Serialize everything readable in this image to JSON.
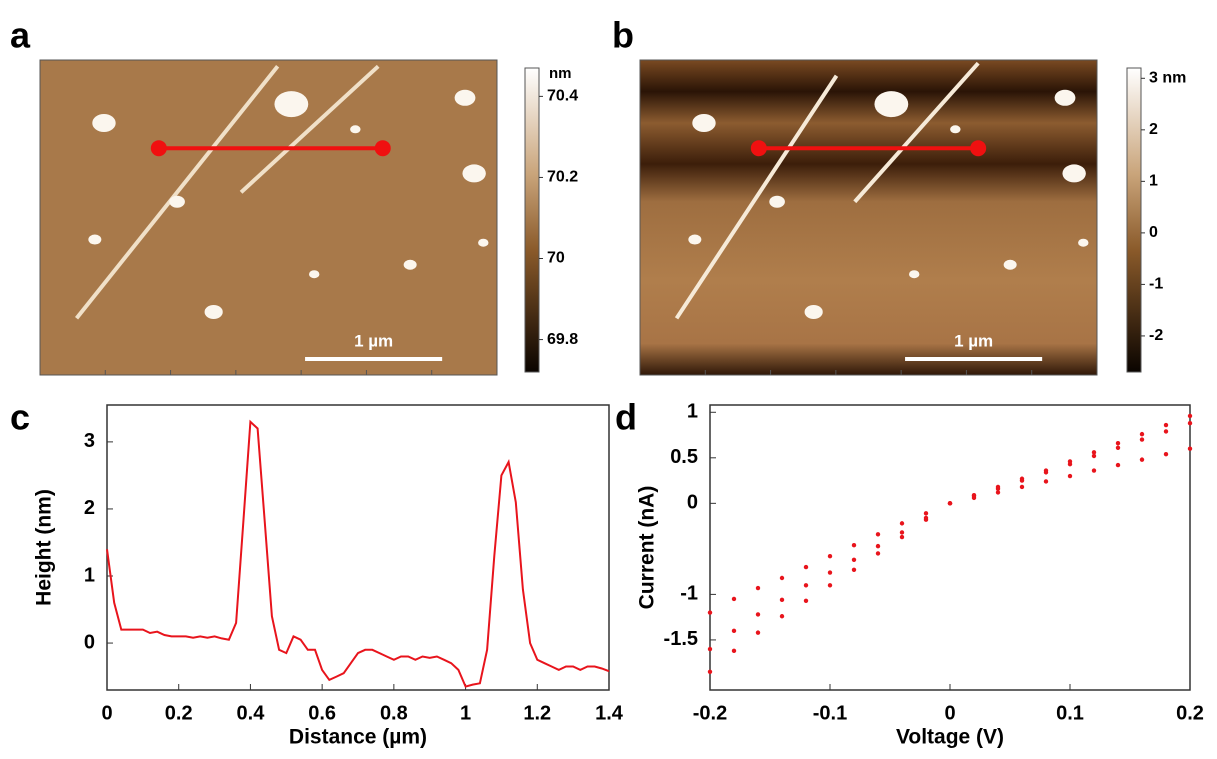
{
  "chart_data": [
    {
      "type": "image",
      "panel": "a",
      "colorbar_unit": "nm",
      "colorbar_ticks": [
        70.4,
        70.2,
        70,
        69.8
      ],
      "clim": [
        69.72,
        70.47
      ],
      "scale_bar": "1 µm"
    },
    {
      "type": "image",
      "panel": "b",
      "colorbar_ticks": [
        {
          "value": 3,
          "label": "3 nm"
        },
        2,
        1,
        0,
        -1,
        -2
      ],
      "clim": [
        -2.7,
        3.2
      ],
      "scale_bar": "1 µm"
    },
    {
      "type": "line",
      "panel": "c",
      "xlabel": "Distance (µm)",
      "ylabel": "Height (nm)",
      "x": [
        0,
        0.02,
        0.04,
        0.06,
        0.08,
        0.1,
        0.12,
        0.14,
        0.16,
        0.18,
        0.2,
        0.22,
        0.24,
        0.26,
        0.28,
        0.3,
        0.32,
        0.34,
        0.36,
        0.38,
        0.4,
        0.42,
        0.44,
        0.46,
        0.48,
        0.5,
        0.52,
        0.54,
        0.56,
        0.58,
        0.6,
        0.62,
        0.64,
        0.66,
        0.68,
        0.7,
        0.72,
        0.74,
        0.76,
        0.78,
        0.8,
        0.82,
        0.84,
        0.86,
        0.88,
        0.9,
        0.92,
        0.94,
        0.96,
        0.98,
        1.0,
        1.02,
        1.04,
        1.06,
        1.08,
        1.1,
        1.12,
        1.14,
        1.16,
        1.18,
        1.2,
        1.22,
        1.24,
        1.26,
        1.28,
        1.3,
        1.32,
        1.34,
        1.36,
        1.38,
        1.4
      ],
      "series": [
        {
          "color": "#e8141c",
          "values": [
            1.4,
            0.6,
            0.2,
            0.2,
            0.2,
            0.2,
            0.15,
            0.17,
            0.12,
            0.1,
            0.1,
            0.1,
            0.08,
            0.1,
            0.08,
            0.1,
            0.07,
            0.05,
            0.3,
            1.8,
            3.3,
            3.2,
            1.8,
            0.4,
            -0.1,
            -0.15,
            0.1,
            0.05,
            -0.1,
            -0.1,
            -0.4,
            -0.55,
            -0.5,
            -0.45,
            -0.3,
            -0.15,
            -0.1,
            -0.1,
            -0.15,
            -0.2,
            -0.25,
            -0.2,
            -0.2,
            -0.25,
            -0.2,
            -0.22,
            -0.2,
            -0.25,
            -0.3,
            -0.4,
            -0.65,
            -0.62,
            -0.6,
            -0.1,
            1.3,
            2.5,
            2.7,
            2.1,
            0.8,
            0.0,
            -0.25,
            -0.3,
            -0.35,
            -0.4,
            -0.35,
            -0.35,
            -0.4,
            -0.35,
            -0.35,
            -0.38,
            -0.42
          ]
        }
      ],
      "xlim": [
        0,
        1.4
      ],
      "ylim": [
        -0.7,
        3.55
      ],
      "xticks": [
        0,
        0.2,
        0.4,
        0.6,
        0.8,
        1,
        1.2,
        1.4
      ],
      "yticks": [
        0,
        1,
        2,
        3
      ]
    },
    {
      "type": "scatter",
      "panel": "d",
      "xlabel": "Voltage (V)",
      "ylabel": "Current  (nA)",
      "x": [
        -0.2,
        -0.18,
        -0.16,
        -0.14,
        -0.12,
        -0.1,
        -0.08,
        -0.06,
        -0.04,
        -0.02,
        0,
        0.02,
        0.04,
        0.06,
        0.08,
        0.1,
        0.12,
        0.14,
        0.16,
        0.18,
        0.2
      ],
      "series": [
        {
          "color": "#e8141c",
          "values": [
            -1.2,
            -1.05,
            -0.93,
            -0.82,
            -0.7,
            -0.58,
            -0.46,
            -0.34,
            -0.22,
            -0.11,
            0,
            0.06,
            0.12,
            0.18,
            0.24,
            0.3,
            0.36,
            0.42,
            0.48,
            0.54,
            0.6
          ]
        },
        {
          "color": "#e8141c",
          "values": [
            -1.6,
            -1.4,
            -1.22,
            -1.06,
            -0.9,
            -0.76,
            -0.62,
            -0.47,
            -0.32,
            -0.16,
            0,
            0.09,
            0.18,
            0.27,
            0.36,
            0.46,
            0.56,
            0.66,
            0.76,
            0.86,
            0.96
          ]
        },
        {
          "color": "#e8141c",
          "values": [
            -1.85,
            -1.62,
            -1.42,
            -1.24,
            -1.07,
            -0.9,
            -0.73,
            -0.55,
            -0.37,
            -0.18,
            0,
            0.08,
            0.16,
            0.25,
            0.34,
            0.43,
            0.52,
            0.61,
            0.7,
            0.79,
            0.88
          ]
        }
      ],
      "xlim": [
        -0.2,
        0.2
      ],
      "ylim": [
        -2.05,
        1.08
      ],
      "xticks": [
        -0.2,
        -0.1,
        0,
        0.1,
        0.2
      ],
      "yticks": [
        1,
        0.5,
        0,
        -1,
        -1.5
      ]
    }
  ]
}
